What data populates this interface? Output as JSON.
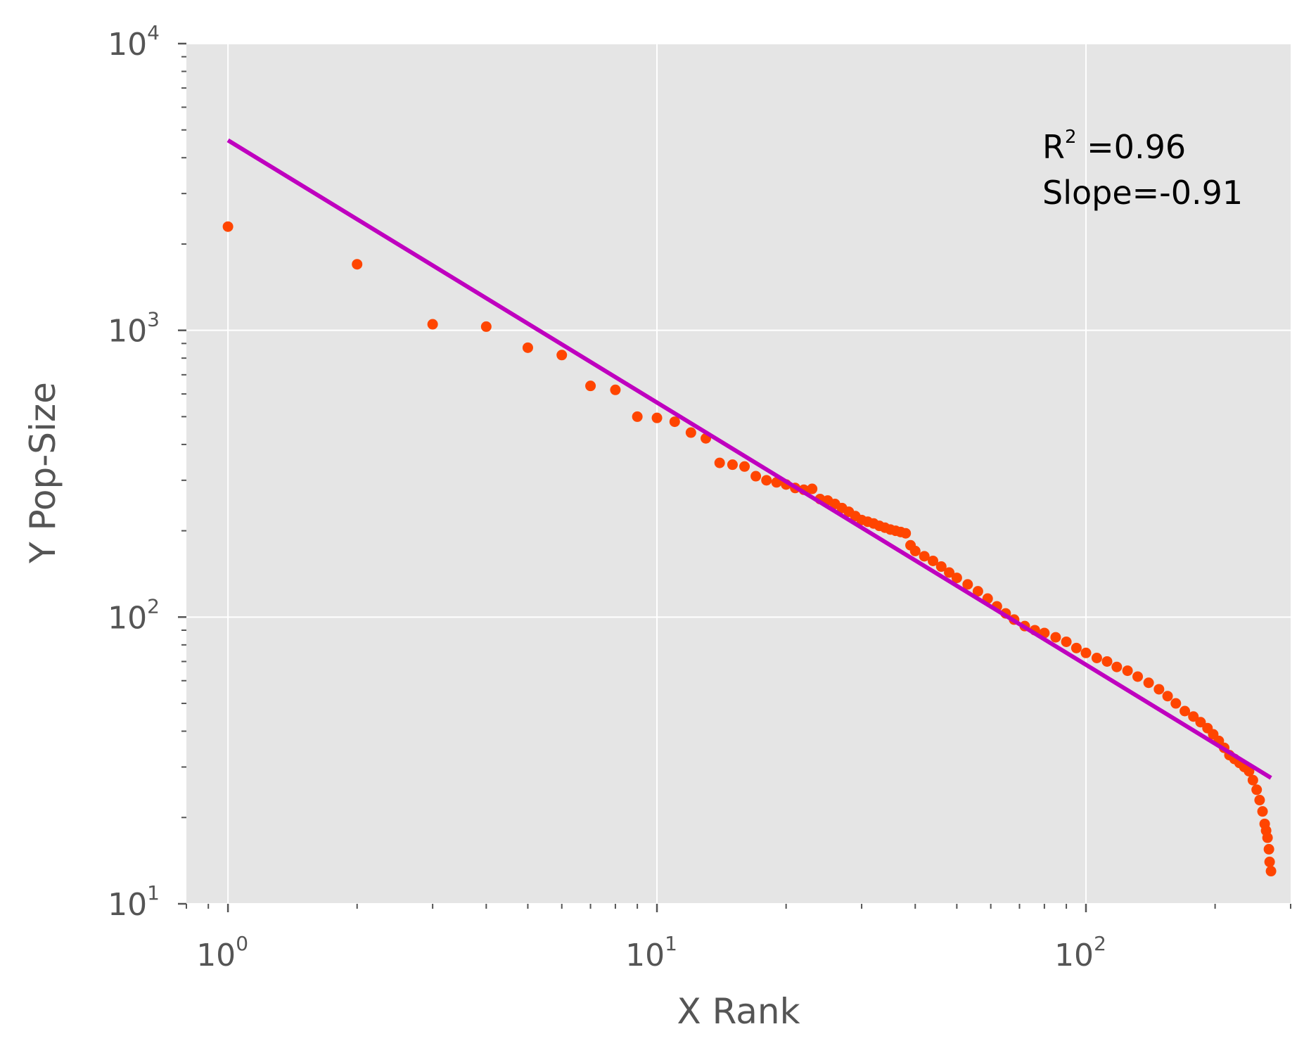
{
  "chart_data": {
    "type": "scatter",
    "title": "",
    "xlabel": "X Rank",
    "ylabel": "Y Pop-Size",
    "x_scale": "log",
    "y_scale": "log",
    "xlim": [
      0.8,
      300
    ],
    "ylim": [
      10,
      10000
    ],
    "grid": true,
    "colors": {
      "plot_background": "#E5E5E5",
      "grid": "#FFFFFF",
      "points": "#FF4500",
      "fit_line": "#BF00BF"
    },
    "x_ticks": [
      {
        "base": "10",
        "exp": "0",
        "value": 1
      },
      {
        "base": "10",
        "exp": "1",
        "value": 10
      },
      {
        "base": "10",
        "exp": "2",
        "value": 100
      }
    ],
    "y_ticks": [
      {
        "base": "10",
        "exp": "1",
        "value": 10
      },
      {
        "base": "10",
        "exp": "2",
        "value": 100
      },
      {
        "base": "10",
        "exp": "3",
        "value": 1000
      },
      {
        "base": "10",
        "exp": "4",
        "value": 10000
      }
    ],
    "annotation": {
      "r2_base": "R",
      "r2_exp": "2",
      "r2_value": " =0.96",
      "slope_text": "Slope=-0.91"
    },
    "fit_line": {
      "x": [
        1,
        270
      ],
      "y": [
        4600,
        27.5
      ]
    },
    "points": {
      "x": [
        1,
        2,
        3,
        4,
        5,
        6,
        7,
        8,
        9,
        10,
        11,
        12,
        13,
        14,
        15,
        16,
        17,
        18,
        19,
        20,
        21,
        22,
        23,
        24,
        25,
        26,
        27,
        28,
        29,
        30,
        31,
        32,
        33,
        34,
        35,
        36,
        37,
        38,
        39,
        40,
        42,
        44,
        46,
        48,
        50,
        53,
        56,
        59,
        62,
        65,
        68,
        72,
        76,
        80,
        85,
        90,
        95,
        100,
        106,
        112,
        118,
        125,
        132,
        140,
        148,
        155,
        162,
        170,
        178,
        185,
        192,
        198,
        204,
        210,
        216,
        222,
        228,
        234,
        240,
        245,
        250,
        254,
        258,
        261,
        263,
        265,
        267,
        268,
        270
      ],
      "y": [
        2300,
        1700,
        1050,
        1030,
        870,
        820,
        640,
        620,
        500,
        495,
        480,
        440,
        420,
        345,
        340,
        335,
        310,
        300,
        295,
        290,
        282,
        278,
        280,
        258,
        255,
        248,
        240,
        233,
        225,
        218,
        215,
        212,
        208,
        205,
        202,
        200,
        198,
        196,
        178,
        170,
        163,
        157,
        150,
        143,
        137,
        130,
        123,
        116,
        109,
        103,
        98,
        93,
        90,
        88,
        85,
        82,
        78,
        75,
        72,
        70,
        67,
        65,
        62,
        59,
        56,
        53,
        50,
        47,
        45,
        43,
        41,
        39,
        37,
        35,
        33,
        32,
        31,
        30,
        29,
        27,
        25,
        23,
        21,
        19,
        18,
        17,
        15.5,
        14,
        13
      ]
    }
  }
}
